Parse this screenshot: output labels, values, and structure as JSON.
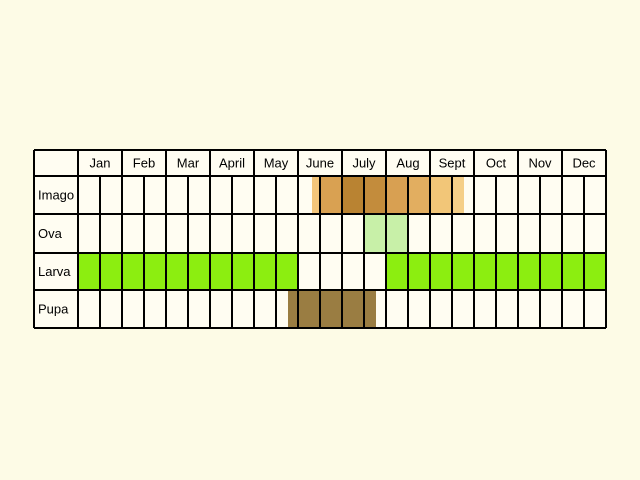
{
  "header": {
    "months": [
      "Jan",
      "Feb",
      "Mar",
      "April",
      "May",
      "June",
      "July",
      "Aug",
      "Sept",
      "Oct",
      "Nov",
      "Dec"
    ]
  },
  "rows": [
    {
      "label": "Imago"
    },
    {
      "label": "Ova"
    },
    {
      "label": "Larva"
    },
    {
      "label": "Pupa"
    }
  ]
}
